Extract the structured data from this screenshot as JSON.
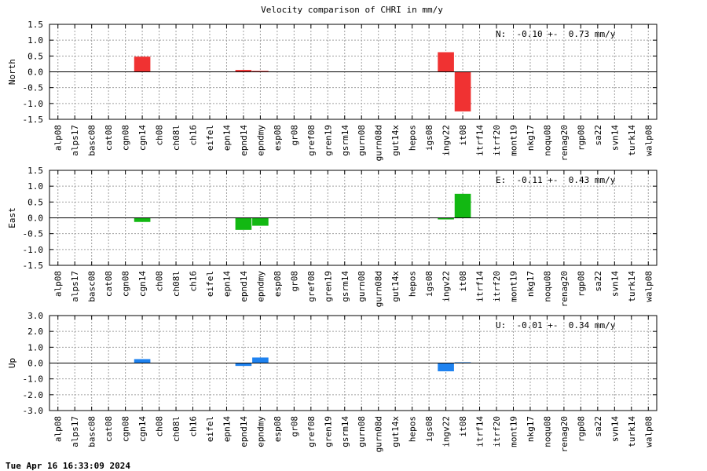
{
  "title": "Velocity comparison of CHRI in mm/y",
  "timestamp": "Tue Apr 16 16:33:09 2024",
  "chart_data": [
    {
      "type": "bar",
      "ylabel": "North",
      "ylim": [
        -1.5,
        1.5
      ],
      "yticks": [
        -1.5,
        -1.0,
        -0.5,
        0.0,
        0.5,
        1.0,
        1.5
      ],
      "grid": true,
      "color": "#f03232",
      "summary": "N:  -0.10 +-  0.73 mm/y",
      "categories": [
        "alp08",
        "alps17",
        "basc08",
        "cat08",
        "cgn08",
        "cgn14",
        "ch08",
        "ch08l",
        "ch16",
        "eifel",
        "epn14",
        "epnd14",
        "epndmy",
        "esp08",
        "gr08",
        "gref08",
        "gren19",
        "gsrm14",
        "gurn08",
        "gurn08d",
        "gut14x",
        "hepos",
        "igs08",
        "ingv22",
        "it08",
        "itrf14",
        "itrf20",
        "mont19",
        "nkg17",
        "noqu08",
        "renag20",
        "rgp08",
        "sa22",
        "svn14",
        "turk14",
        "walp08"
      ],
      "values": [
        0,
        0,
        0,
        0,
        0,
        0.48,
        0,
        0,
        0,
        0,
        0,
        0.06,
        0.03,
        0,
        0,
        0,
        0,
        0,
        0,
        0,
        0,
        0,
        0,
        0.62,
        -1.25,
        0,
        0,
        0,
        0,
        0,
        0,
        0,
        0,
        0,
        0,
        0
      ]
    },
    {
      "type": "bar",
      "ylabel": "East",
      "ylim": [
        -1.5,
        1.5
      ],
      "yticks": [
        -1.5,
        -1.0,
        -0.5,
        0.0,
        0.5,
        1.0,
        1.5
      ],
      "grid": true,
      "color": "#12b812",
      "summary": "E:  -0.11 +-  0.43 mm/y",
      "categories": [
        "alp08",
        "alps17",
        "basc08",
        "cat08",
        "cgn08",
        "cgn14",
        "ch08",
        "ch08l",
        "ch16",
        "eifel",
        "epn14",
        "epnd14",
        "epndmy",
        "esp08",
        "gr08",
        "gref08",
        "gren19",
        "gsrm14",
        "gurn08",
        "gurn08d",
        "gut14x",
        "hepos",
        "igs08",
        "ingv22",
        "it08",
        "itrf14",
        "itrf20",
        "mont19",
        "nkg17",
        "noqu08",
        "renag20",
        "rgp08",
        "sa22",
        "svn14",
        "turk14",
        "walp08"
      ],
      "values": [
        0,
        0,
        0,
        0,
        0,
        -0.13,
        0,
        0,
        0,
        0,
        0,
        -0.38,
        -0.25,
        0,
        0,
        0,
        0,
        0,
        0,
        0,
        0,
        0,
        0,
        -0.05,
        0.76,
        0,
        0,
        0,
        0,
        0,
        0,
        0,
        0,
        0,
        0,
        0
      ]
    },
    {
      "type": "bar",
      "ylabel": "Up",
      "ylim": [
        -3.0,
        3.0
      ],
      "yticks": [
        -3.0,
        -2.0,
        -1.0,
        0.0,
        1.0,
        2.0,
        3.0
      ],
      "grid": true,
      "color": "#1e82f0",
      "summary": "U:  -0.01 +-  0.34 mm/y",
      "categories": [
        "alp08",
        "alps17",
        "basc08",
        "cat08",
        "cgn08",
        "cgn14",
        "ch08",
        "ch08l",
        "ch16",
        "eifel",
        "epn14",
        "epnd14",
        "epndmy",
        "esp08",
        "gr08",
        "gref08",
        "gren19",
        "gsrm14",
        "gurn08",
        "gurn08d",
        "gut14x",
        "hepos",
        "igs08",
        "ingv22",
        "it08",
        "itrf14",
        "itrf20",
        "mont19",
        "nkg17",
        "noqu08",
        "renag20",
        "rgp08",
        "sa22",
        "svn14",
        "turk14",
        "walp08"
      ],
      "values": [
        0,
        0,
        0,
        0,
        0,
        0.25,
        0,
        0,
        0,
        0,
        0,
        -0.18,
        0.35,
        0,
        0,
        0,
        0,
        0,
        0,
        0,
        0,
        0,
        0,
        -0.52,
        0.05,
        0,
        0,
        0,
        0,
        0,
        0,
        0,
        0,
        0,
        0,
        0
      ]
    }
  ]
}
